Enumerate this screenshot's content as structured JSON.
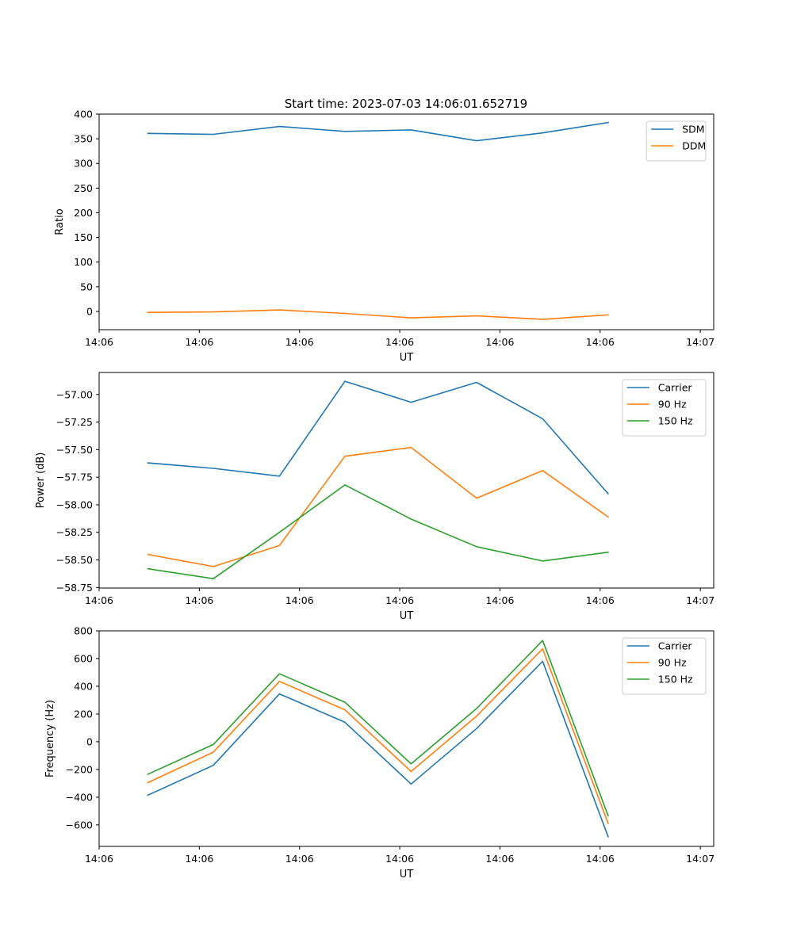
{
  "figure": {
    "title": "Start time: 2023-07-03 14:06:01.652719"
  },
  "chart_data": [
    {
      "type": "line",
      "xlabel": "UT",
      "ylabel": "Ratio",
      "xlim": [
        0,
        9.2
      ],
      "x_tick_positions": [
        0,
        1.5,
        3,
        4.5,
        6,
        7.5,
        9
      ],
      "x_tick_labels": [
        "14:06",
        "14:06",
        "14:06",
        "14:06",
        "14:06",
        "14:06",
        "14:07"
      ],
      "ylim": [
        -37,
        400
      ],
      "yticks": [
        0,
        50,
        100,
        150,
        200,
        250,
        300,
        350,
        400
      ],
      "ytick_labels": [
        "0",
        "50",
        "100",
        "150",
        "200",
        "250",
        "300",
        "350",
        "400"
      ],
      "x": [
        0.73,
        1.71,
        2.7,
        3.68,
        4.67,
        5.65,
        6.64,
        7.62
      ],
      "legend_position": "top-right",
      "series": [
        {
          "name": "SDM",
          "color": "#1f77b4",
          "values": [
            361,
            359,
            375,
            365,
            368,
            346,
            362,
            383
          ]
        },
        {
          "name": "DDM",
          "color": "#ff7f0e",
          "values": [
            -2,
            -1,
            3,
            -4,
            -13,
            -9,
            -16,
            -7
          ]
        }
      ]
    },
    {
      "type": "line",
      "xlabel": "UT",
      "ylabel": "Power (dB)",
      "xlim": [
        0,
        9.2
      ],
      "x_tick_positions": [
        0,
        1.5,
        3,
        4.5,
        6,
        7.5,
        9
      ],
      "x_tick_labels": [
        "14:06",
        "14:06",
        "14:06",
        "14:06",
        "14:06",
        "14:06",
        "14:07"
      ],
      "ylim": [
        -58.755,
        -56.8
      ],
      "yticks": [
        -57.0,
        -57.25,
        -57.5,
        -57.75,
        -58.0,
        -58.25,
        -58.5,
        -58.75
      ],
      "ytick_labels": [
        "−57.00",
        "−57.25",
        "−57.50",
        "−57.75",
        "−58.00",
        "−58.25",
        "−58.50",
        "−58.75"
      ],
      "x": [
        0.73,
        1.71,
        2.7,
        3.68,
        4.67,
        5.65,
        6.64,
        7.62
      ],
      "legend_position": "top-right",
      "series": [
        {
          "name": "Carrier",
          "color": "#1f77b4",
          "values": [
            -57.62,
            -57.67,
            -57.74,
            -56.88,
            -57.07,
            -56.89,
            -57.22,
            -57.9
          ]
        },
        {
          "name": "90 Hz",
          "color": "#ff7f0e",
          "values": [
            -58.45,
            -58.56,
            -58.37,
            -57.56,
            -57.48,
            -57.94,
            -57.69,
            -58.11
          ]
        },
        {
          "name": "150 Hz",
          "color": "#2ca02c",
          "values": [
            -58.58,
            -58.67,
            -58.25,
            -57.82,
            -58.13,
            -58.38,
            -58.51,
            -58.43
          ]
        }
      ]
    },
    {
      "type": "line",
      "xlabel": "UT",
      "ylabel": "Frequency (Hz)",
      "xlim": [
        0,
        9.2
      ],
      "x_tick_positions": [
        0,
        1.5,
        3,
        4.5,
        6,
        7.5,
        9
      ],
      "x_tick_labels": [
        "14:06",
        "14:06",
        "14:06",
        "14:06",
        "14:06",
        "14:06",
        "14:07"
      ],
      "ylim": [
        -755,
        800
      ],
      "yticks": [
        800,
        600,
        400,
        200,
        0,
        -200,
        -400,
        -600
      ],
      "ytick_labels": [
        "800",
        "600",
        "400",
        "200",
        "0",
        "−200",
        "−400",
        "−600"
      ],
      "x": [
        0.73,
        1.71,
        2.7,
        3.68,
        4.67,
        5.65,
        6.64,
        7.62
      ],
      "legend_position": "top-right",
      "series": [
        {
          "name": "Carrier",
          "color": "#1f77b4",
          "values": [
            -385,
            -170,
            345,
            140,
            -305,
            95,
            580,
            -685
          ]
        },
        {
          "name": "90 Hz",
          "color": "#ff7f0e",
          "values": [
            -295,
            -75,
            435,
            230,
            -215,
            185,
            670,
            -590
          ]
        },
        {
          "name": "150 Hz",
          "color": "#2ca02c",
          "values": [
            -235,
            -20,
            490,
            285,
            -160,
            240,
            730,
            -535
          ]
        }
      ]
    }
  ]
}
